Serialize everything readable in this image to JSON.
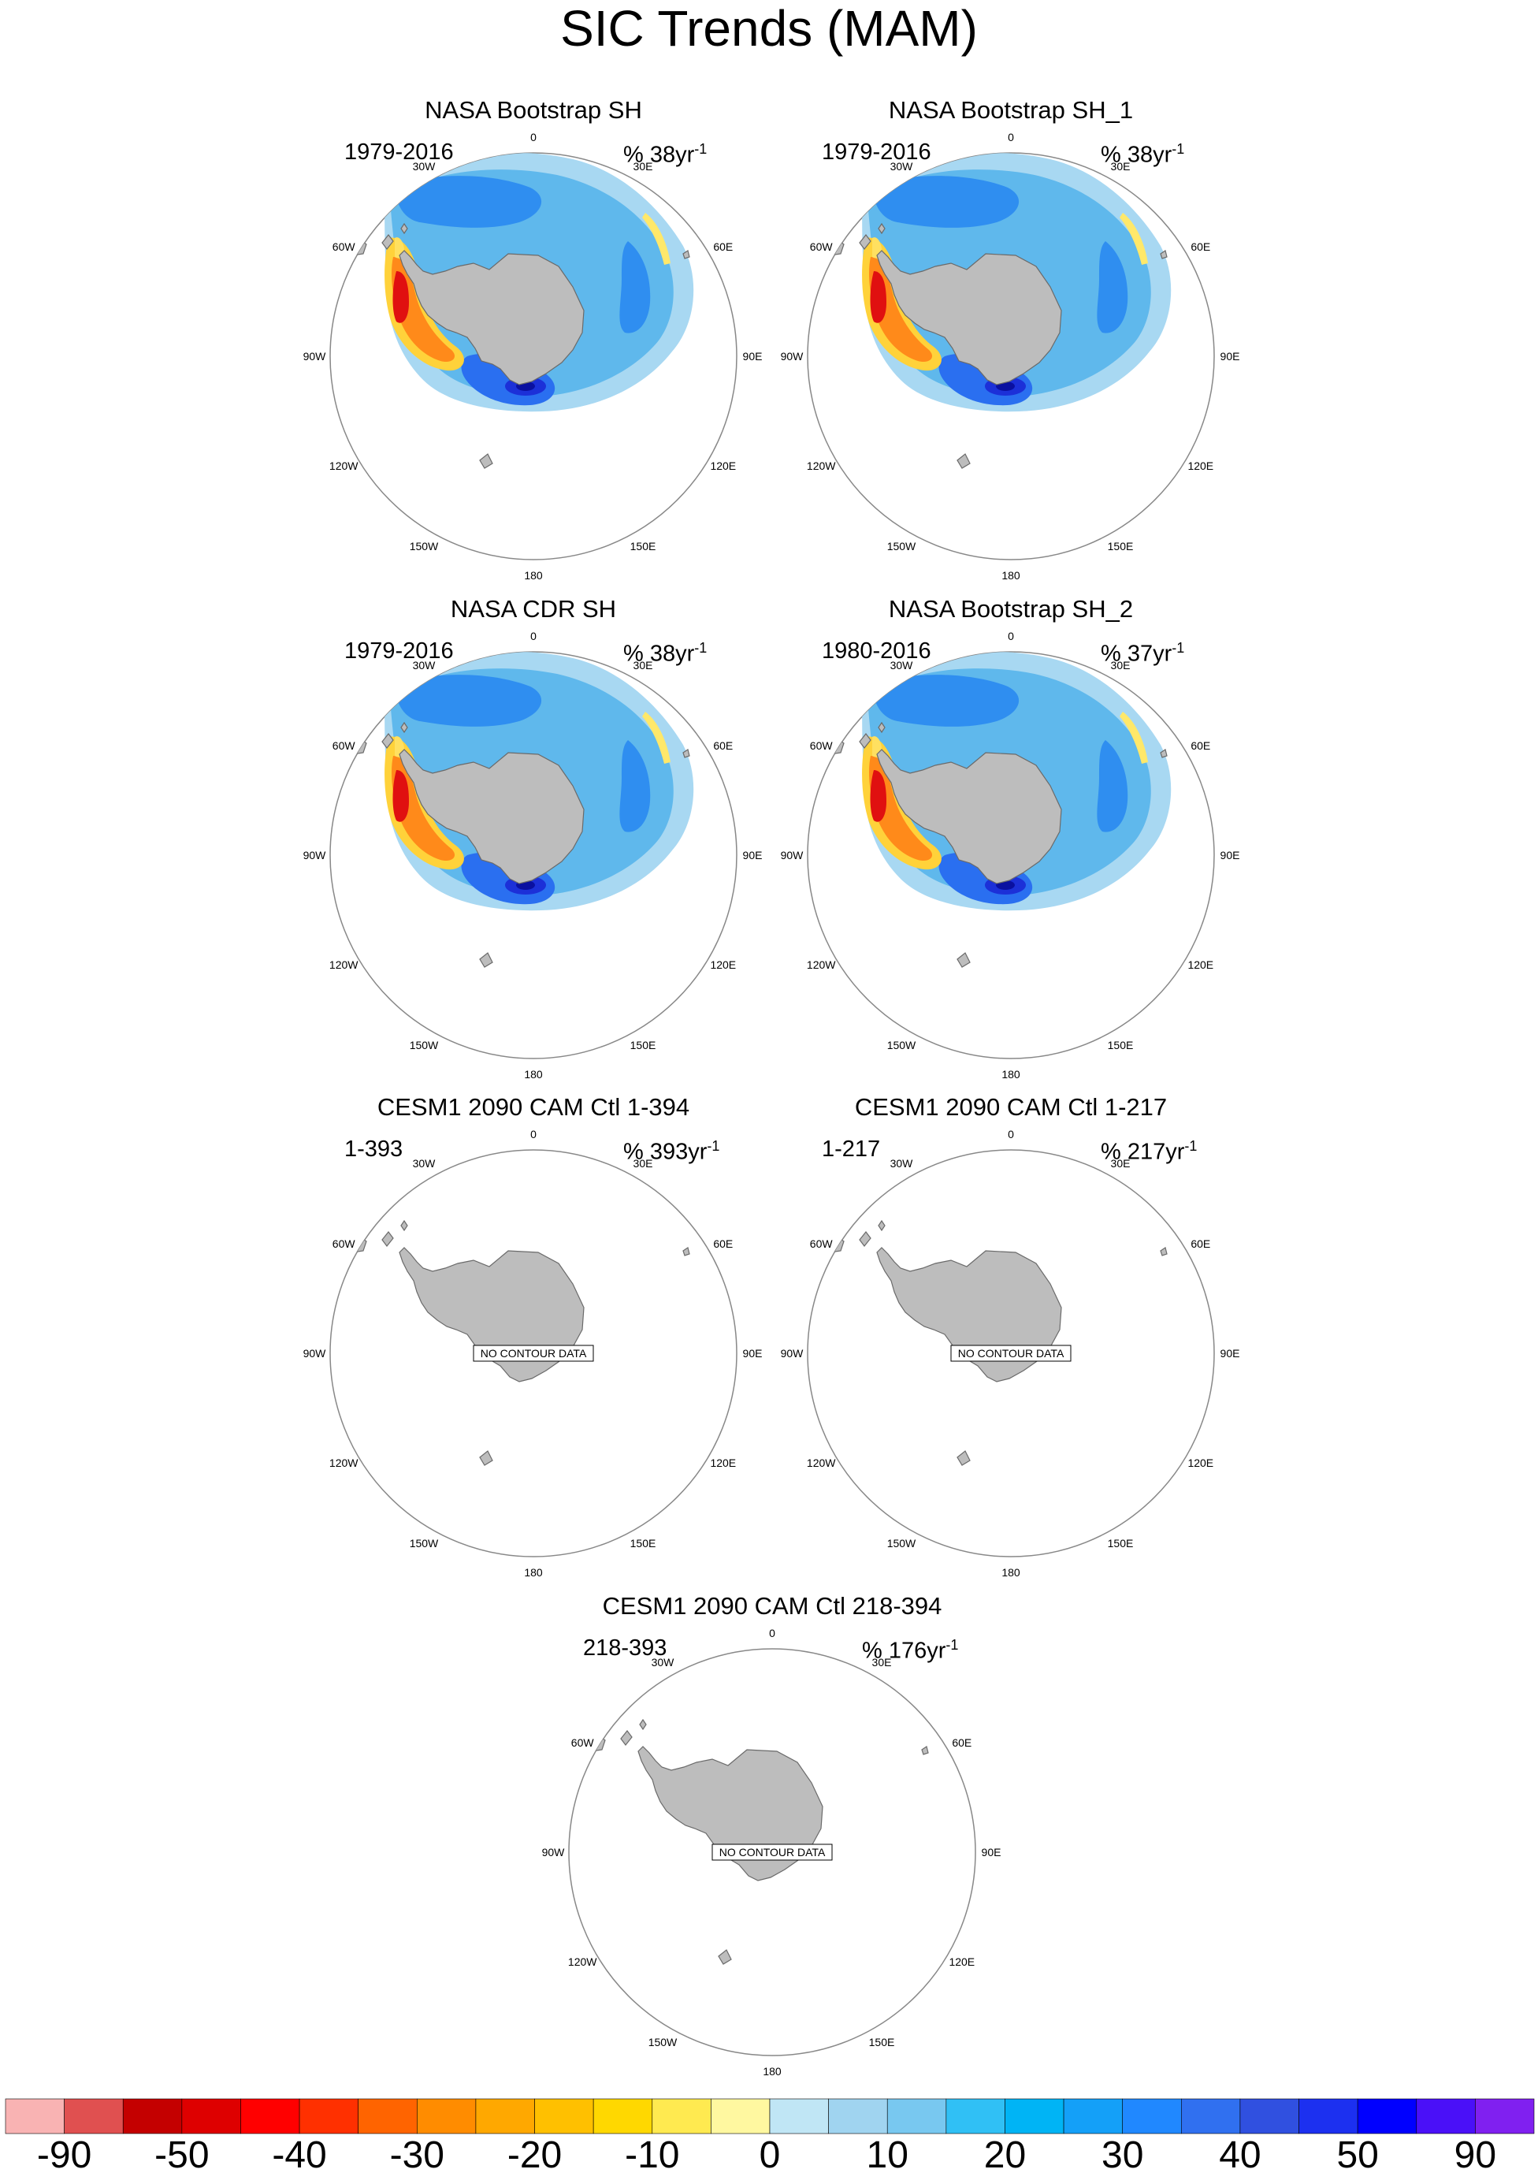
{
  "title": "SIC Trends (MAM)",
  "lon_labels": [
    "0",
    "30E",
    "60E",
    "90E",
    "120E",
    "150E",
    "180",
    "150W",
    "120W",
    "90W",
    "60W",
    "30W"
  ],
  "no_data_text": "NO CONTOUR DATA",
  "panels": [
    {
      "title": "NASA Bootstrap SH",
      "period": "1979-2016",
      "units_prefix": "% 38yr",
      "units_sup": "-1",
      "has_data": true
    },
    {
      "title": "NASA Bootstrap SH_1",
      "period": "1979-2016",
      "units_prefix": "% 38yr",
      "units_sup": "-1",
      "has_data": true
    },
    {
      "title": "NASA CDR SH",
      "period": "1979-2016",
      "units_prefix": "% 38yr",
      "units_sup": "-1",
      "has_data": true
    },
    {
      "title": "NASA Bootstrap SH_2",
      "period": "1980-2016",
      "units_prefix": "% 37yr",
      "units_sup": "-1",
      "has_data": true
    },
    {
      "title": "CESM1 2090 CAM Ctl 1-394",
      "period": "1-393",
      "units_prefix": "% 393yr",
      "units_sup": "-1",
      "has_data": false
    },
    {
      "title": "CESM1 2090 CAM Ctl 1-217",
      "period": "1-217",
      "units_prefix": "% 217yr",
      "units_sup": "-1",
      "has_data": false
    },
    {
      "title": "CESM1 2090 CAM Ctl 218-394",
      "period": "218-393",
      "units_prefix": "% 176yr",
      "units_sup": "-1",
      "has_data": false
    }
  ],
  "colorbar": {
    "colors": [
      "#f9b3b3",
      "#e05050",
      "#c40000",
      "#de0000",
      "#ff0000",
      "#ff3000",
      "#ff6400",
      "#ff8c00",
      "#ffa800",
      "#ffc000",
      "#ffd800",
      "#ffea50",
      "#fff8a0",
      "#c0e6f5",
      "#a0d4f0",
      "#78c8f0",
      "#30c0f5",
      "#00b4f5",
      "#14a0f8",
      "#2088ff",
      "#3070f0",
      "#3050e0",
      "#1c30f0",
      "#0000ff",
      "#4a10f8",
      "#8020f0"
    ],
    "labels": [
      "-90",
      "-50",
      "-40",
      "-30",
      "-20",
      "-10",
      "0",
      "10",
      "20",
      "30",
      "40",
      "50",
      "90"
    ]
  },
  "colors": {
    "land": "#bdbdbd",
    "coast": "#6a6a6a",
    "circle": "#888888"
  }
}
